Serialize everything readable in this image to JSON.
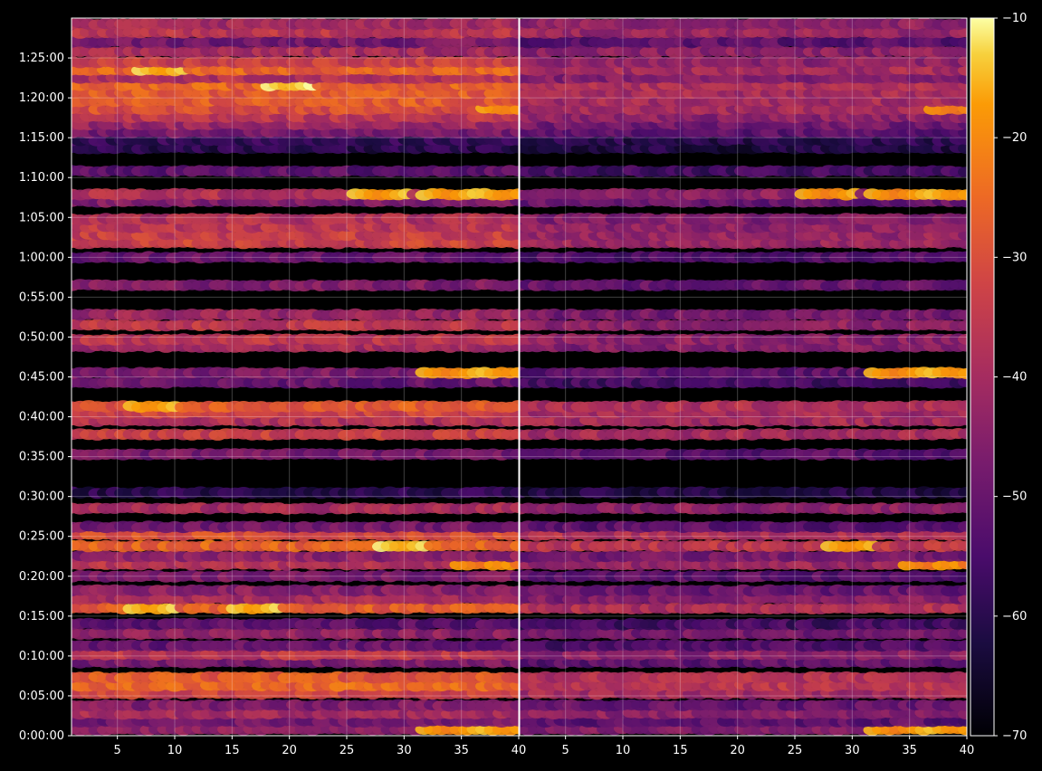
{
  "chart_data": {
    "type": "heatmap",
    "title": "",
    "xlabel": "",
    "ylabel": "",
    "background": "#000000",
    "colormap": "inferno",
    "grid": true,
    "y_ticks": [
      "0:00:00",
      "0:05:00",
      "0:10:00",
      "0:15:00",
      "0:20:00",
      "0:25:00",
      "0:30:00",
      "0:35:00",
      "0:40:00",
      "0:45:00",
      "0:50:00",
      "0:55:00",
      "1:00:00",
      "1:05:00",
      "1:10:00",
      "1:15:00",
      "1:20:00",
      "1:25:00"
    ],
    "ylim_minutes": [
      0,
      90
    ],
    "x_ticks": [
      "5",
      "10",
      "15",
      "20",
      "25",
      "30",
      "35",
      "40"
    ],
    "xlim": [
      1,
      40
    ],
    "colorbar": {
      "ticks": [
        "−10",
        "−20",
        "−30",
        "−40",
        "−50",
        "−60",
        "−70"
      ],
      "range": [
        -70,
        -10
      ]
    },
    "panels": [
      {
        "name": "left",
        "rows": [
          {
            "t": 0.8,
            "level": -44,
            "hot": [
              {
                "x": 34,
                "v": -22
              },
              {
                "x": 39,
                "v": -20
              }
            ]
          },
          {
            "t": 1.8,
            "level": -48
          },
          {
            "t": 2.8,
            "level": -40
          },
          {
            "t": 3.8,
            "level": -46
          },
          {
            "t": 5.3,
            "level": -33
          },
          {
            "t": 6.3,
            "level": -26
          },
          {
            "t": 7.3,
            "level": -28
          },
          {
            "t": 9.2,
            "level": -47
          },
          {
            "t": 10.2,
            "level": -36
          },
          {
            "t": 11.3,
            "level": -50
          },
          {
            "t": 12.8,
            "level": -44
          },
          {
            "t": 14.0,
            "level": -52
          },
          {
            "t": 16.0,
            "level": -28,
            "hot": [
              {
                "x": 8,
                "v": -18
              },
              {
                "x": 17,
                "v": -18
              }
            ]
          },
          {
            "t": 17.2,
            "level": -40
          },
          {
            "t": 18.2,
            "level": -45
          },
          {
            "t": 20.0,
            "level": -47
          },
          {
            "t": 21.5,
            "level": -37,
            "hot": [
              {
                "x": 37,
                "v": -24
              },
              {
                "x": 40,
                "v": -24
              }
            ]
          },
          {
            "t": 22.5,
            "level": -44
          },
          {
            "t": 23.8,
            "level": -26,
            "hot": [
              {
                "x": 30,
                "v": -17
              }
            ]
          },
          {
            "t": 25.2,
            "level": -30
          },
          {
            "t": 26.2,
            "level": -48
          },
          {
            "t": 28.5,
            "level": -40
          },
          {
            "t": 30.5,
            "level": -60
          },
          {
            "t": 35.3,
            "level": -48
          },
          {
            "t": 37.8,
            "level": -34
          },
          {
            "t": 39.5,
            "level": -38
          },
          {
            "t": 40.5,
            "level": -33
          },
          {
            "t": 41.3,
            "level": -28,
            "hot": [
              {
                "x": 8,
                "v": -20
              }
            ]
          },
          {
            "t": 44.3,
            "level": -50
          },
          {
            "t": 45.5,
            "level": -47,
            "hot": [
              {
                "x": 34,
                "v": -22
              },
              {
                "x": 39,
                "v": -20
              }
            ]
          },
          {
            "t": 48.8,
            "level": -40
          },
          {
            "t": 49.7,
            "level": -36
          },
          {
            "t": 51.5,
            "level": -36
          },
          {
            "t": 52.8,
            "level": -42
          },
          {
            "t": 56.5,
            "level": -46
          },
          {
            "t": 60.0,
            "level": -50
          },
          {
            "t": 61.8,
            "level": -33
          },
          {
            "t": 62.8,
            "level": -34
          },
          {
            "t": 63.8,
            "level": -36
          },
          {
            "t": 64.8,
            "level": -38
          },
          {
            "t": 67.0,
            "level": -46
          },
          {
            "t": 67.9,
            "level": -38,
            "hot": [
              {
                "x": 28,
                "v": -20
              },
              {
                "x": 34,
                "v": -20
              },
              {
                "x": 39,
                "v": -20
              }
            ]
          },
          {
            "t": 70.8,
            "level": -52
          },
          {
            "t": 73.7,
            "level": -60
          },
          {
            "t": 74.7,
            "level": -58
          },
          {
            "t": 75.7,
            "level": -48
          },
          {
            "t": 76.7,
            "level": -42
          },
          {
            "t": 77.6,
            "level": -36
          },
          {
            "t": 78.6,
            "level": -30,
            "hot": [
              {
                "x": 39,
                "v": -22
              }
            ]
          },
          {
            "t": 79.6,
            "level": -28
          },
          {
            "t": 80.6,
            "level": -28
          },
          {
            "t": 81.6,
            "level": -26,
            "hot": [
              {
                "x": 20,
                "v": -16
              }
            ]
          },
          {
            "t": 82.5,
            "level": -38
          },
          {
            "t": 83.5,
            "level": -26,
            "hot": [
              {
                "x": 9,
                "v": -18
              }
            ]
          },
          {
            "t": 84.5,
            "level": -34
          },
          {
            "t": 85.8,
            "level": -40
          },
          {
            "t": 87.0,
            "level": -48
          },
          {
            "t": 88.2,
            "level": -36
          },
          {
            "t": 89.3,
            "level": -40
          }
        ]
      },
      {
        "name": "right",
        "rows": [
          {
            "t": 0.8,
            "level": -46,
            "hot": [
              {
                "x": 34,
                "v": -22
              },
              {
                "x": 39,
                "v": -20
              }
            ]
          },
          {
            "t": 1.8,
            "level": -52
          },
          {
            "t": 2.8,
            "level": -44
          },
          {
            "t": 3.8,
            "level": -50
          },
          {
            "t": 5.3,
            "level": -40
          },
          {
            "t": 6.3,
            "level": -36
          },
          {
            "t": 7.3,
            "level": -38
          },
          {
            "t": 9.2,
            "level": -52
          },
          {
            "t": 10.2,
            "level": -44
          },
          {
            "t": 11.3,
            "level": -54
          },
          {
            "t": 12.8,
            "level": -48
          },
          {
            "t": 14.0,
            "level": -56
          },
          {
            "t": 16.0,
            "level": -38
          },
          {
            "t": 17.2,
            "level": -46
          },
          {
            "t": 18.2,
            "level": -50
          },
          {
            "t": 20.0,
            "level": -52
          },
          {
            "t": 21.5,
            "level": -42,
            "hot": [
              {
                "x": 37,
                "v": -24
              },
              {
                "x": 40,
                "v": -24
              }
            ]
          },
          {
            "t": 22.5,
            "level": -48
          },
          {
            "t": 23.8,
            "level": -36,
            "hot": [
              {
                "x": 30,
                "v": -20
              }
            ]
          },
          {
            "t": 25.2,
            "level": -38
          },
          {
            "t": 26.2,
            "level": -52
          },
          {
            "t": 28.5,
            "level": -44
          },
          {
            "t": 30.5,
            "level": -62
          },
          {
            "t": 35.3,
            "level": -52
          },
          {
            "t": 37.8,
            "level": -40
          },
          {
            "t": 39.5,
            "level": -40
          },
          {
            "t": 40.5,
            "level": -40
          },
          {
            "t": 41.3,
            "level": -38
          },
          {
            "t": 44.3,
            "level": -56
          },
          {
            "t": 45.5,
            "level": -52,
            "hot": [
              {
                "x": 34,
                "v": -22
              },
              {
                "x": 39,
                "v": -20
              }
            ]
          },
          {
            "t": 48.8,
            "level": -46
          },
          {
            "t": 49.7,
            "level": -44
          },
          {
            "t": 51.5,
            "level": -44
          },
          {
            "t": 52.8,
            "level": -48
          },
          {
            "t": 56.5,
            "level": -50
          },
          {
            "t": 60.0,
            "level": -54
          },
          {
            "t": 61.8,
            "level": -42
          },
          {
            "t": 62.8,
            "level": -42
          },
          {
            "t": 63.8,
            "level": -44
          },
          {
            "t": 64.8,
            "level": -46
          },
          {
            "t": 67.0,
            "level": -50
          },
          {
            "t": 67.9,
            "level": -44,
            "hot": [
              {
                "x": 28,
                "v": -22
              },
              {
                "x": 34,
                "v": -22
              },
              {
                "x": 39,
                "v": -20
              }
            ]
          },
          {
            "t": 70.8,
            "level": -56
          },
          {
            "t": 73.7,
            "level": -62
          },
          {
            "t": 74.7,
            "level": -60
          },
          {
            "t": 75.7,
            "level": -52
          },
          {
            "t": 76.7,
            "level": -48
          },
          {
            "t": 77.6,
            "level": -44
          },
          {
            "t": 78.6,
            "level": -40,
            "hot": [
              {
                "x": 39,
                "v": -24
              }
            ]
          },
          {
            "t": 79.6,
            "level": -40
          },
          {
            "t": 80.6,
            "level": -40
          },
          {
            "t": 81.6,
            "level": -38
          },
          {
            "t": 82.5,
            "level": -46
          },
          {
            "t": 83.5,
            "level": -40
          },
          {
            "t": 84.5,
            "level": -44
          },
          {
            "t": 85.8,
            "level": -44
          },
          {
            "t": 87.0,
            "level": -52
          },
          {
            "t": 88.2,
            "level": -42
          },
          {
            "t": 89.3,
            "level": -44
          }
        ]
      }
    ]
  }
}
